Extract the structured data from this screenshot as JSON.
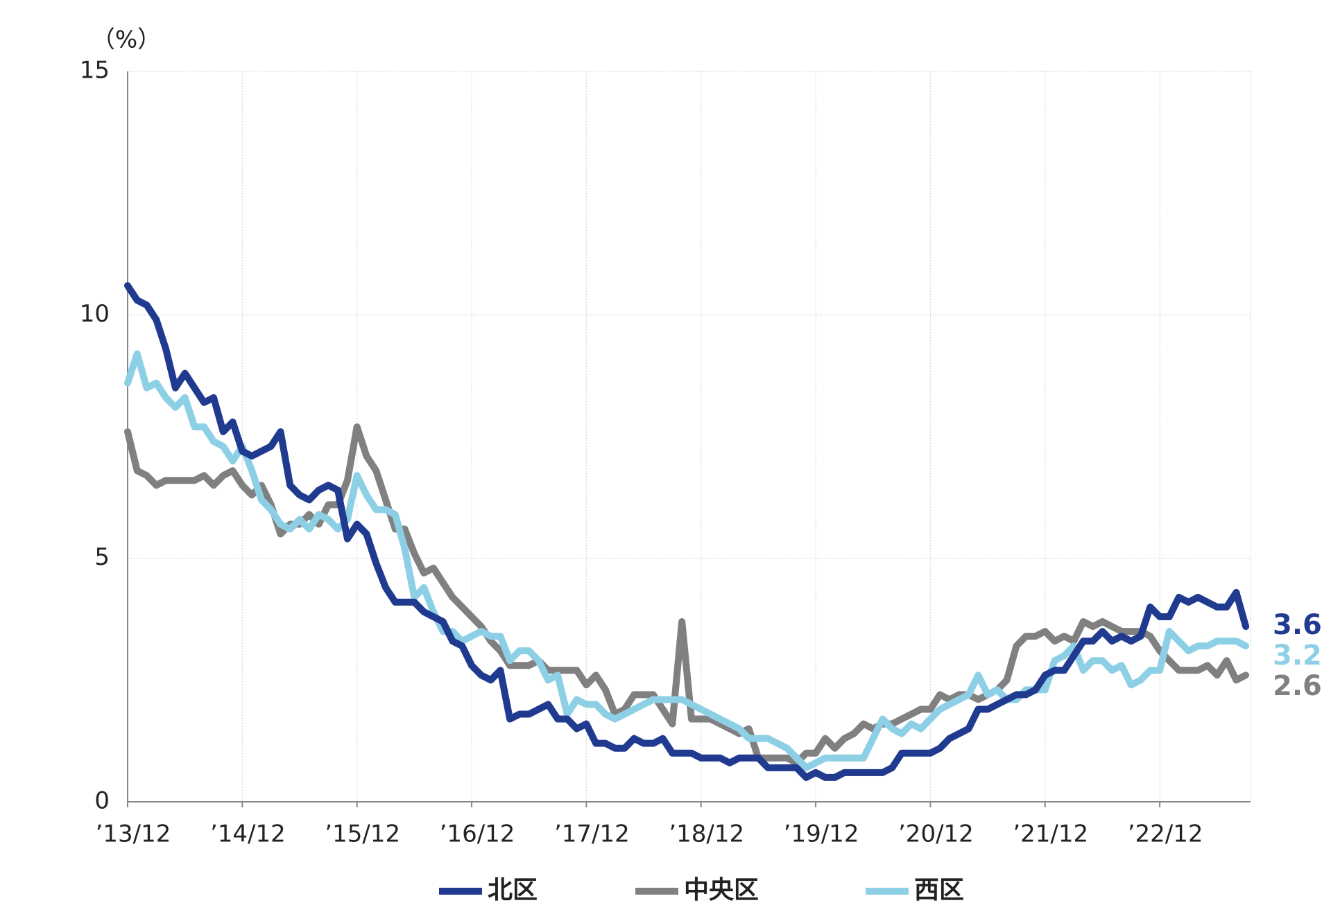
{
  "chart_data": {
    "type": "line",
    "y_label": "（%）",
    "categories": [
      "’13/12",
      null,
      null,
      null,
      null,
      null,
      null,
      null,
      null,
      null,
      null,
      null,
      "’14/12",
      null,
      null,
      null,
      null,
      null,
      null,
      null,
      null,
      null,
      null,
      null,
      "’15/12",
      null,
      null,
      null,
      null,
      null,
      null,
      null,
      null,
      null,
      null,
      null,
      "’16/12",
      null,
      null,
      null,
      null,
      null,
      null,
      null,
      null,
      null,
      null,
      null,
      "’17/12",
      null,
      null,
      null,
      null,
      null,
      null,
      null,
      null,
      null,
      null,
      null,
      "’18/12",
      null,
      null,
      null,
      null,
      null,
      null,
      null,
      null,
      null,
      null,
      null,
      "’19/12",
      null,
      null,
      null,
      null,
      null,
      null,
      null,
      null,
      null,
      null,
      null,
      "’20/12",
      null,
      null,
      null,
      null,
      null,
      null,
      null,
      null,
      null,
      null,
      null,
      "’21/12",
      null,
      null,
      null,
      null,
      null,
      null,
      null,
      null,
      null,
      null,
      null,
      "’22/12",
      null,
      null,
      null,
      null,
      null,
      null,
      null,
      null,
      null
    ],
    "series": [
      {
        "name": "北区",
        "color": "#1f3a8f",
        "values": [
          10.6,
          10.3,
          10.2,
          9.9,
          9.3,
          8.5,
          8.8,
          8.5,
          8.2,
          8.3,
          7.6,
          7.8,
          7.2,
          7.1,
          7.2,
          7.3,
          7.6,
          6.5,
          6.3,
          6.2,
          6.4,
          6.5,
          6.4,
          5.4,
          5.7,
          5.5,
          4.9,
          4.4,
          4.1,
          4.1,
          4.1,
          3.9,
          3.8,
          3.7,
          3.3,
          3.2,
          2.8,
          2.6,
          2.5,
          2.7,
          1.7,
          1.8,
          1.8,
          1.9,
          2.0,
          1.7,
          1.7,
          1.5,
          1.6,
          1.2,
          1.2,
          1.1,
          1.1,
          1.3,
          1.2,
          1.2,
          1.3,
          1.0,
          1.0,
          1.0,
          0.9,
          0.9,
          0.9,
          0.8,
          0.9,
          0.9,
          0.9,
          0.7,
          0.7,
          0.7,
          0.7,
          0.5,
          0.6,
          0.5,
          0.5,
          0.6,
          0.6,
          0.6,
          0.6,
          0.6,
          0.7,
          1.0,
          1.0,
          1.0,
          1.0,
          1.1,
          1.3,
          1.4,
          1.5,
          1.9,
          1.9,
          2.0,
          2.1,
          2.2,
          2.2,
          2.3,
          2.6,
          2.7,
          2.7,
          3.0,
          3.3,
          3.3,
          3.5,
          3.3,
          3.4,
          3.3,
          3.4,
          4.0,
          3.8,
          3.8,
          4.2,
          4.1,
          4.2,
          4.1,
          4.0,
          4.0,
          4.3,
          3.6
        ]
      },
      {
        "name": "中央区",
        "color": "#808080",
        "values": [
          7.6,
          6.8,
          6.7,
          6.5,
          6.6,
          6.6,
          6.6,
          6.6,
          6.7,
          6.5,
          6.7,
          6.8,
          6.5,
          6.3,
          6.5,
          6.1,
          5.5,
          5.7,
          5.7,
          5.9,
          5.7,
          6.1,
          6.1,
          6.6,
          7.7,
          7.1,
          6.8,
          6.2,
          5.6,
          5.6,
          5.1,
          4.7,
          4.8,
          4.5,
          4.2,
          4.0,
          3.8,
          3.6,
          3.3,
          3.1,
          2.8,
          2.8,
          2.8,
          2.9,
          2.7,
          2.7,
          2.7,
          2.7,
          2.4,
          2.6,
          2.3,
          1.8,
          1.9,
          2.2,
          2.2,
          2.2,
          1.9,
          1.6,
          3.7,
          1.7,
          1.7,
          1.7,
          1.6,
          1.5,
          1.4,
          1.5,
          0.9,
          0.9,
          0.9,
          0.9,
          0.8,
          1.0,
          1.0,
          1.3,
          1.1,
          1.3,
          1.4,
          1.6,
          1.5,
          1.6,
          1.6,
          1.7,
          1.8,
          1.9,
          1.9,
          2.2,
          2.1,
          2.2,
          2.2,
          2.1,
          2.2,
          2.3,
          2.5,
          3.2,
          3.4,
          3.4,
          3.5,
          3.3,
          3.4,
          3.3,
          3.7,
          3.6,
          3.7,
          3.6,
          3.5,
          3.5,
          3.5,
          3.4,
          3.1,
          2.9,
          2.7,
          2.7,
          2.7,
          2.8,
          2.6,
          2.9,
          2.5,
          2.6
        ]
      },
      {
        "name": "西区",
        "color": "#8dd0e6",
        "values": [
          8.6,
          9.2,
          8.5,
          8.6,
          8.3,
          8.1,
          8.3,
          7.7,
          7.7,
          7.4,
          7.3,
          7.0,
          7.3,
          6.8,
          6.2,
          6.0,
          5.7,
          5.6,
          5.8,
          5.6,
          5.9,
          5.8,
          5.6,
          5.8,
          6.7,
          6.3,
          6.0,
          6.0,
          5.9,
          5.2,
          4.2,
          4.4,
          3.9,
          3.5,
          3.5,
          3.3,
          3.4,
          3.5,
          3.4,
          3.4,
          2.9,
          3.1,
          3.1,
          2.9,
          2.5,
          2.6,
          1.8,
          2.1,
          2.0,
          2.0,
          1.8,
          1.7,
          1.8,
          1.9,
          2.0,
          2.1,
          2.1,
          2.1,
          2.1,
          2.0,
          1.9,
          1.8,
          1.7,
          1.6,
          1.5,
          1.3,
          1.3,
          1.3,
          1.2,
          1.1,
          0.9,
          0.7,
          0.8,
          0.9,
          0.9,
          0.9,
          0.9,
          0.9,
          1.3,
          1.7,
          1.5,
          1.4,
          1.6,
          1.5,
          1.7,
          1.9,
          2.0,
          2.1,
          2.2,
          2.6,
          2.2,
          2.3,
          2.1,
          2.1,
          2.3,
          2.3,
          2.3,
          2.9,
          3.0,
          3.2,
          2.7,
          2.9,
          2.9,
          2.7,
          2.8,
          2.4,
          2.5,
          2.7,
          2.7,
          3.5,
          3.3,
          3.1,
          3.2,
          3.2,
          3.3,
          3.3,
          3.3,
          3.2
        ]
      }
    ],
    "ylim": [
      0,
      15
    ],
    "yticks": [
      0,
      5,
      10,
      15
    ],
    "grid": true,
    "legend": "bottom"
  }
}
